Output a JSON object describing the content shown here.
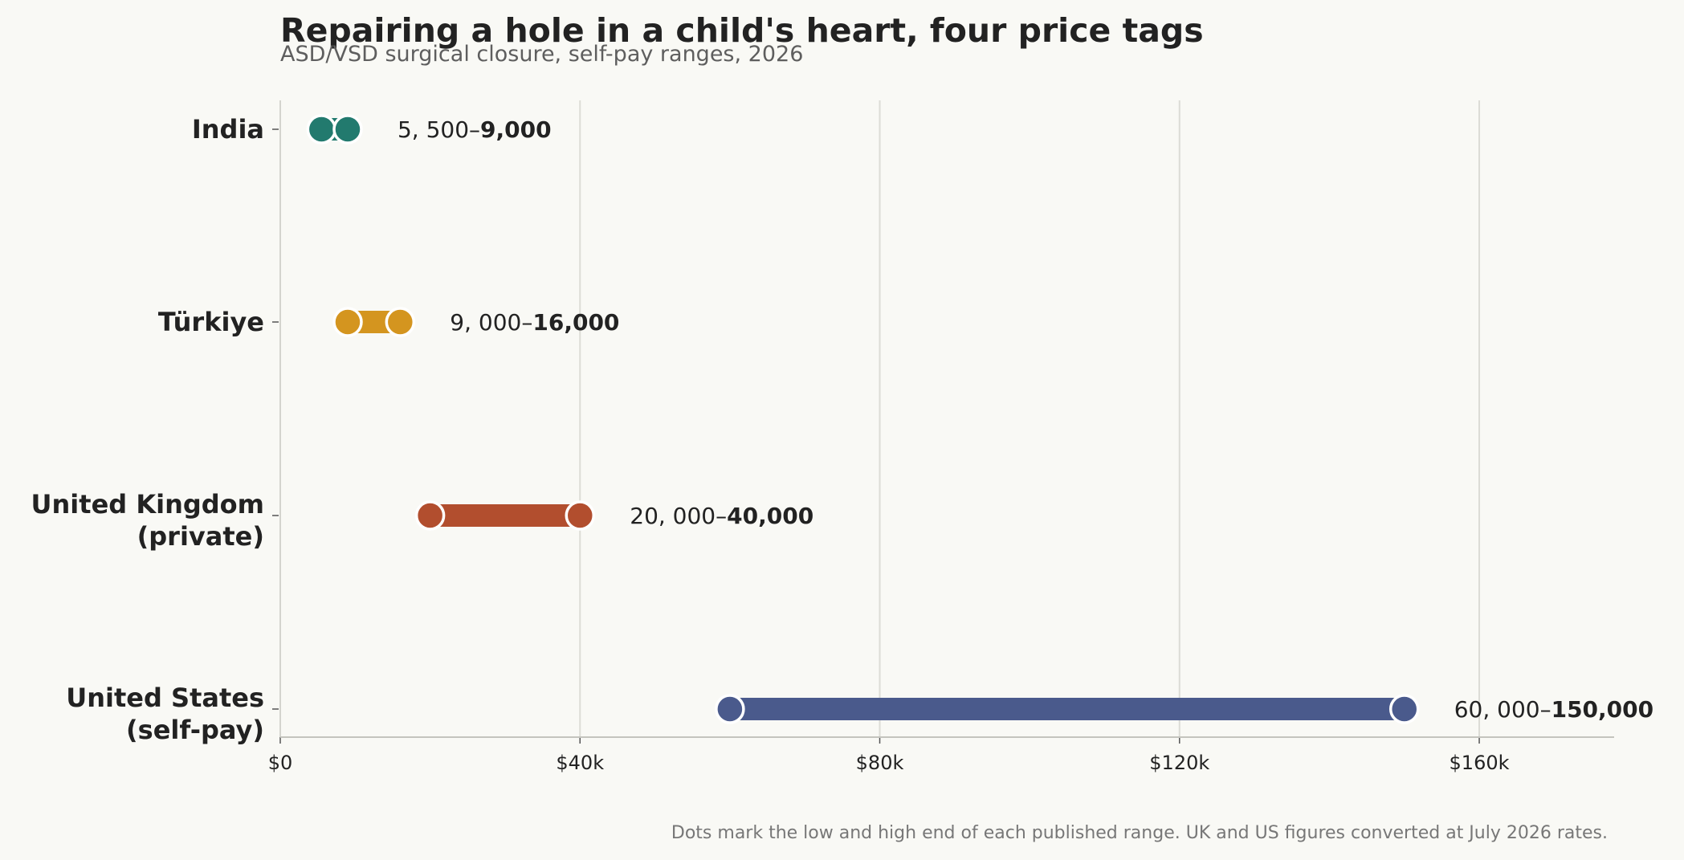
{
  "header": {
    "title": "Repairing a hole in a child's heart, four price tags",
    "subtitle": "ASD/VSD surgical closure, self-pay ranges, 2026"
  },
  "footnote": "Dots mark the low and high end of each published range. UK and US figures converted at July 2026 rates.",
  "chart_data": {
    "type": "dumbbell",
    "title": "Repairing a hole in a child's heart, four price tags",
    "subtitle": "ASD/VSD surgical closure, self-pay ranges, 2026",
    "xlabel": "",
    "ylabel": "",
    "xlim": [
      0,
      178000
    ],
    "x_ticks": [
      0,
      40000,
      80000,
      120000,
      160000
    ],
    "x_tick_labels": [
      "$0",
      "$40k",
      "$80k",
      "$120k",
      "$160k"
    ],
    "grid": "vertical",
    "legend": "none",
    "categories": [
      {
        "name": "India",
        "lines": [
          "India"
        ],
        "low": 5500,
        "high": 9000,
        "color": "#227a6e",
        "label_low": "5, 500–",
        "label_high": "9,000"
      },
      {
        "name": "Türkiye",
        "lines": [
          "Türkiye"
        ],
        "low": 9000,
        "high": 16000,
        "color": "#d4951f",
        "label_low": "9, 000–",
        "label_high": "16,000"
      },
      {
        "name": "United Kingdom (private)",
        "lines": [
          "United Kingdom",
          "(private)"
        ],
        "low": 20000,
        "high": 40000,
        "color": "#b24e2e",
        "label_low": "20, 000–",
        "label_high": "40,000"
      },
      {
        "name": "United States (self-pay)",
        "lines": [
          "United States",
          "(self-pay)"
        ],
        "low": 60000,
        "high": 150000,
        "color": "#4a5a8c",
        "label_low": "60, 000–",
        "label_high": "150,000"
      }
    ]
  }
}
